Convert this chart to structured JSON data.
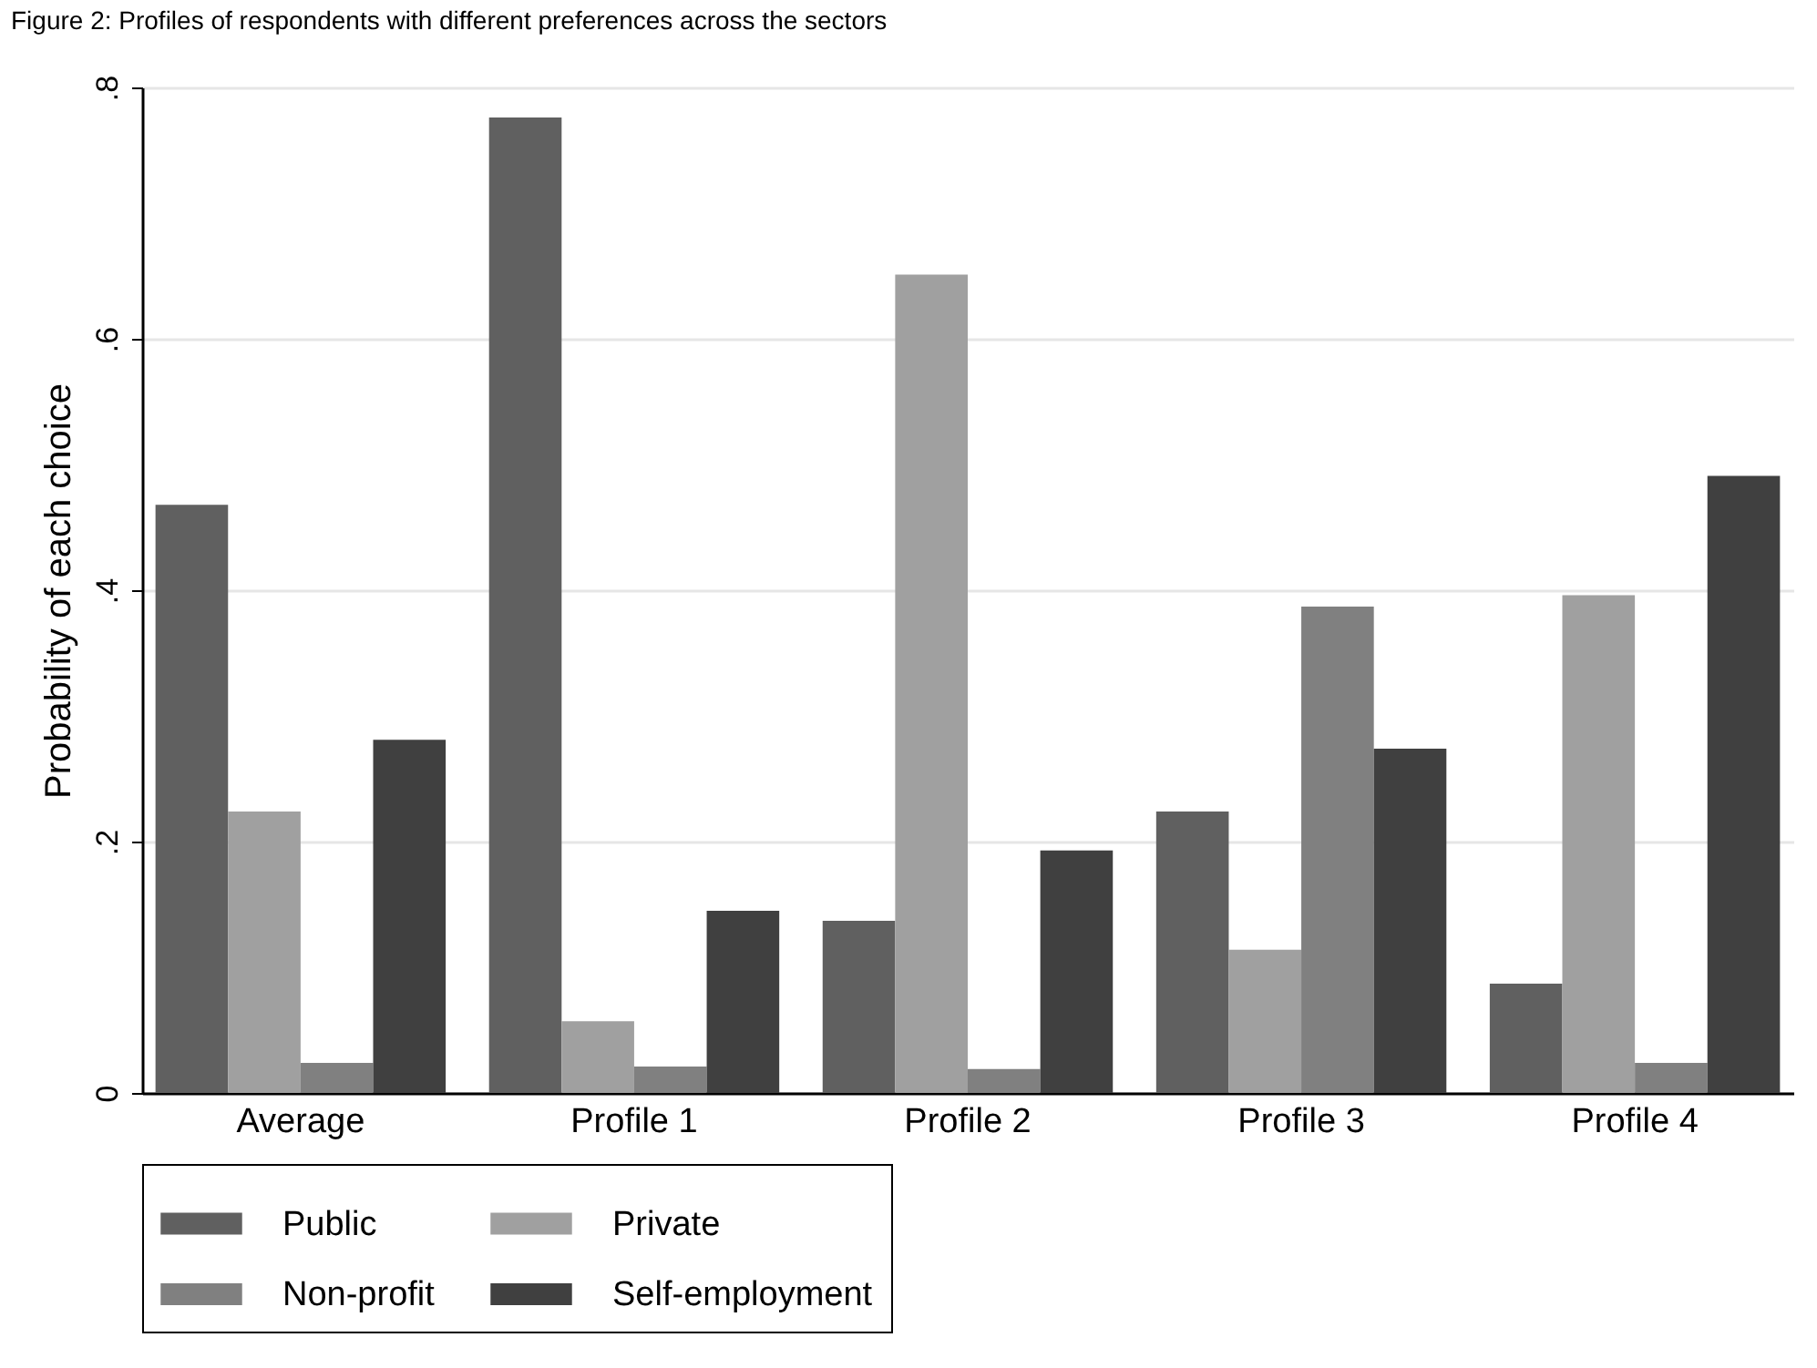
{
  "chart_data": {
    "type": "bar",
    "title": "Figure 2: Profiles of respondents with different preferences across the sectors",
    "ylabel": "Probability of each choice",
    "categories": [
      "Average",
      "Profile 1",
      "Profile 2",
      "Profile 3",
      "Profile 4"
    ],
    "series": [
      {
        "name": "Public",
        "color": "#606060",
        "values": [
          0.468,
          0.776,
          0.137,
          0.224,
          0.087
        ]
      },
      {
        "name": "Private",
        "color": "#a0a0a0",
        "values": [
          0.224,
          0.057,
          0.651,
          0.114,
          0.396
        ]
      },
      {
        "name": "Non-profit",
        "color": "#808080",
        "values": [
          0.024,
          0.021,
          0.019,
          0.387,
          0.024
        ]
      },
      {
        "name": "Self-employment",
        "color": "#404040",
        "values": [
          0.281,
          0.145,
          0.193,
          0.274,
          0.491
        ]
      }
    ],
    "ylim": [
      0,
      0.8
    ],
    "yticks": [
      {
        "value": 0,
        "label": "0"
      },
      {
        "value": 0.2,
        "label": ".2"
      },
      {
        "value": 0.4,
        "label": ".4"
      },
      {
        "value": 0.6,
        "label": ".6"
      },
      {
        "value": 0.8,
        "label": ".8"
      }
    ],
    "grid": "y",
    "legend": "bottom"
  }
}
